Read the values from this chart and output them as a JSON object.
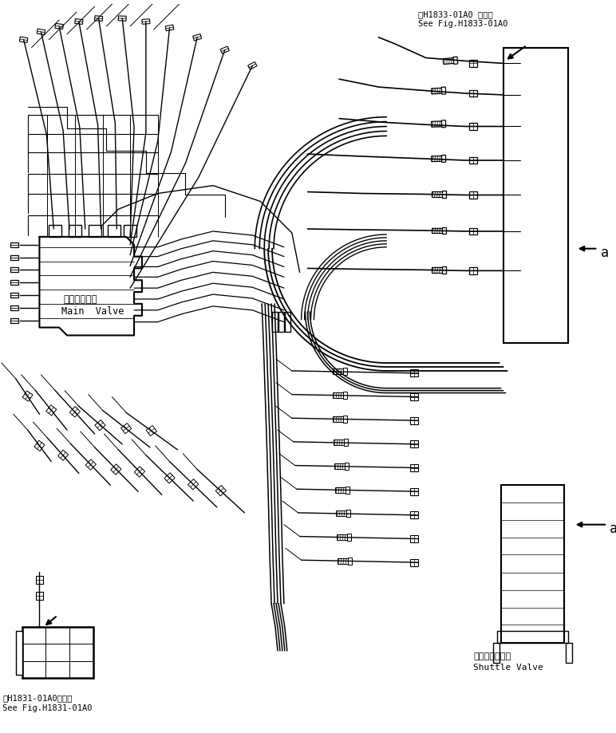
{
  "bg_color": "#ffffff",
  "title_top_right_line1": "第H1833-01A0 図参照",
  "title_top_right_line2": "See Fig.H1833-01A0",
  "title_bottom_left_line1": "第H1831-01A0図参照",
  "title_bottom_left_line2": "See Fig.H1831-01A0",
  "label_main_valve_jp": "メインバルブ",
  "label_main_valve_en": "Main  Valve",
  "label_shuttle_valve_jp": "シャトルバルブ",
  "label_shuttle_valve_en": "Shuttle Valve",
  "label_a": "a"
}
